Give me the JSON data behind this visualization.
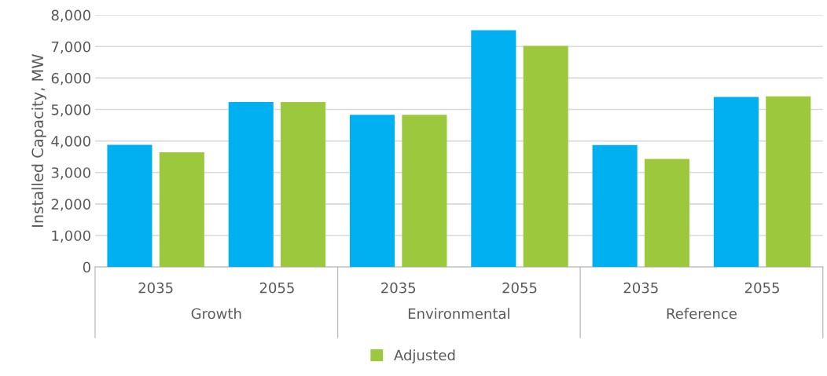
{
  "chart_data": {
    "type": "bar",
    "ylabel": "Installed Capacity, MW",
    "categories": [
      "2035",
      "2055",
      "2035",
      "2055",
      "2035",
      "2055"
    ],
    "annotations": [
      "Growth",
      "Environmental",
      "Reference"
    ],
    "series": [
      {
        "color": "#00b0f0",
        "values": [
          3880,
          5240,
          4830,
          7520,
          3870,
          5400
        ]
      },
      {
        "name": "Adjusted",
        "color": "#9bc83c",
        "values": [
          3640,
          5240,
          4830,
          7020,
          3430,
          5420
        ]
      }
    ],
    "ylim": [
      0,
      8000
    ],
    "yticks": [
      {
        "value": 0,
        "label": "0"
      },
      {
        "value": 1000,
        "label": "1,000"
      },
      {
        "value": 2000,
        "label": "2,000"
      },
      {
        "value": 3000,
        "label": "3,000"
      },
      {
        "value": 4000,
        "label": "4,000"
      },
      {
        "value": 5000,
        "label": "5,000"
      },
      {
        "value": 6000,
        "label": "6,000"
      },
      {
        "value": 7000,
        "label": "7,000"
      },
      {
        "value": 8000,
        "label": "8,000"
      }
    ],
    "grid": "y",
    "legend": "bottom"
  }
}
